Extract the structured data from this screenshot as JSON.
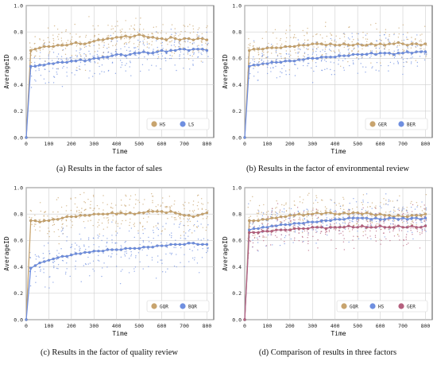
{
  "chart_data": [
    {
      "type": "scatter",
      "caption": "(a) Results in the factor of sales",
      "xlabel": "Time",
      "ylabel": "AverageID",
      "xlim": [
        0,
        830
      ],
      "ylim": [
        0,
        1.0
      ],
      "xticks": [
        0,
        100,
        200,
        300,
        400,
        500,
        600,
        700,
        800
      ],
      "yticks": [
        0.0,
        0.2,
        0.4,
        0.6,
        0.8,
        1.0
      ],
      "grid": true,
      "legend_position": "bottom-right",
      "series": [
        {
          "name": "HS",
          "color": "#c8a46e",
          "x": [
            0,
            20,
            40,
            60,
            80,
            100,
            120,
            140,
            160,
            180,
            200,
            220,
            240,
            260,
            280,
            300,
            320,
            340,
            360,
            380,
            400,
            420,
            440,
            460,
            480,
            500,
            520,
            540,
            560,
            580,
            600,
            620,
            640,
            660,
            680,
            700,
            720,
            740,
            760,
            780,
            800
          ],
          "y": [
            0.0,
            0.66,
            0.67,
            0.68,
            0.69,
            0.69,
            0.69,
            0.7,
            0.7,
            0.7,
            0.71,
            0.72,
            0.71,
            0.71,
            0.72,
            0.73,
            0.74,
            0.74,
            0.75,
            0.75,
            0.76,
            0.76,
            0.77,
            0.76,
            0.77,
            0.78,
            0.77,
            0.76,
            0.76,
            0.75,
            0.75,
            0.74,
            0.76,
            0.75,
            0.74,
            0.75,
            0.75,
            0.74,
            0.75,
            0.75,
            0.74
          ]
        },
        {
          "name": "LS",
          "color": "#6f8fe0",
          "x": [
            0,
            20,
            40,
            60,
            80,
            100,
            120,
            140,
            160,
            180,
            200,
            220,
            240,
            260,
            280,
            300,
            320,
            340,
            360,
            380,
            400,
            420,
            440,
            460,
            480,
            500,
            520,
            540,
            560,
            580,
            600,
            620,
            640,
            660,
            680,
            700,
            720,
            740,
            760,
            780,
            800
          ],
          "y": [
            0.0,
            0.54,
            0.54,
            0.55,
            0.55,
            0.56,
            0.56,
            0.57,
            0.57,
            0.57,
            0.58,
            0.58,
            0.59,
            0.58,
            0.59,
            0.6,
            0.6,
            0.61,
            0.61,
            0.62,
            0.63,
            0.63,
            0.62,
            0.63,
            0.64,
            0.64,
            0.65,
            0.64,
            0.64,
            0.65,
            0.66,
            0.65,
            0.66,
            0.66,
            0.67,
            0.67,
            0.66,
            0.67,
            0.67,
            0.67,
            0.66
          ]
        }
      ]
    },
    {
      "type": "scatter",
      "caption": "(b) Results in the factor of environmental review",
      "xlabel": "Time",
      "ylabel": "AverageID",
      "xlim": [
        0,
        830
      ],
      "ylim": [
        0,
        1.0
      ],
      "xticks": [
        0,
        100,
        200,
        300,
        400,
        500,
        600,
        700,
        800
      ],
      "yticks": [
        0.0,
        0.2,
        0.4,
        0.6,
        0.8,
        1.0
      ],
      "grid": true,
      "legend_position": "bottom-right",
      "series": [
        {
          "name": "GER",
          "color": "#c8a46e",
          "x": [
            0,
            20,
            40,
            60,
            80,
            100,
            120,
            140,
            160,
            180,
            200,
            220,
            240,
            260,
            280,
            300,
            320,
            340,
            360,
            380,
            400,
            420,
            440,
            460,
            480,
            500,
            520,
            540,
            560,
            580,
            600,
            620,
            640,
            660,
            680,
            700,
            720,
            740,
            760,
            780,
            800
          ],
          "y": [
            0.0,
            0.66,
            0.67,
            0.67,
            0.67,
            0.68,
            0.68,
            0.68,
            0.68,
            0.69,
            0.69,
            0.69,
            0.7,
            0.7,
            0.7,
            0.71,
            0.71,
            0.71,
            0.7,
            0.71,
            0.7,
            0.7,
            0.71,
            0.7,
            0.7,
            0.71,
            0.7,
            0.7,
            0.71,
            0.7,
            0.71,
            0.7,
            0.71,
            0.71,
            0.72,
            0.71,
            0.7,
            0.71,
            0.71,
            0.7,
            0.71
          ]
        },
        {
          "name": "BER",
          "color": "#6f8fe0",
          "x": [
            0,
            20,
            40,
            60,
            80,
            100,
            120,
            140,
            160,
            180,
            200,
            220,
            240,
            260,
            280,
            300,
            320,
            340,
            360,
            380,
            400,
            420,
            440,
            460,
            480,
            500,
            520,
            540,
            560,
            580,
            600,
            620,
            640,
            660,
            680,
            700,
            720,
            740,
            760,
            780,
            800
          ],
          "y": [
            0.0,
            0.54,
            0.55,
            0.55,
            0.56,
            0.56,
            0.57,
            0.57,
            0.57,
            0.58,
            0.58,
            0.58,
            0.59,
            0.59,
            0.6,
            0.6,
            0.6,
            0.61,
            0.61,
            0.61,
            0.61,
            0.62,
            0.62,
            0.62,
            0.63,
            0.63,
            0.63,
            0.63,
            0.64,
            0.63,
            0.64,
            0.64,
            0.64,
            0.63,
            0.64,
            0.64,
            0.65,
            0.64,
            0.65,
            0.65,
            0.65
          ]
        }
      ]
    },
    {
      "type": "scatter",
      "caption": "(c) Results in the factor of quality review",
      "xlabel": "Time",
      "ylabel": "AverageID",
      "xlim": [
        0,
        830
      ],
      "ylim": [
        0,
        1.0
      ],
      "xticks": [
        0,
        100,
        200,
        300,
        400,
        500,
        600,
        700,
        800
      ],
      "yticks": [
        0.0,
        0.2,
        0.4,
        0.6,
        0.8,
        1.0
      ],
      "grid": true,
      "legend_position": "bottom-right",
      "series": [
        {
          "name": "GQR",
          "color": "#c8a46e",
          "x": [
            0,
            20,
            40,
            60,
            80,
            100,
            120,
            140,
            160,
            180,
            200,
            220,
            240,
            260,
            280,
            300,
            320,
            340,
            360,
            380,
            400,
            420,
            440,
            460,
            480,
            500,
            520,
            540,
            560,
            580,
            600,
            620,
            640,
            660,
            680,
            700,
            720,
            740,
            760,
            780,
            800
          ],
          "y": [
            0.0,
            0.75,
            0.75,
            0.74,
            0.75,
            0.75,
            0.76,
            0.76,
            0.77,
            0.78,
            0.78,
            0.78,
            0.79,
            0.79,
            0.79,
            0.8,
            0.8,
            0.8,
            0.8,
            0.81,
            0.8,
            0.81,
            0.8,
            0.81,
            0.8,
            0.81,
            0.81,
            0.82,
            0.82,
            0.82,
            0.82,
            0.81,
            0.82,
            0.81,
            0.8,
            0.79,
            0.79,
            0.78,
            0.79,
            0.8,
            0.81
          ]
        },
        {
          "name": "BQR",
          "color": "#6f8fe0",
          "x": [
            0,
            20,
            40,
            60,
            80,
            100,
            120,
            140,
            160,
            180,
            200,
            220,
            240,
            260,
            280,
            300,
            320,
            340,
            360,
            380,
            400,
            420,
            440,
            460,
            480,
            500,
            520,
            540,
            560,
            580,
            600,
            620,
            640,
            660,
            680,
            700,
            720,
            740,
            760,
            780,
            800
          ],
          "y": [
            0.0,
            0.39,
            0.41,
            0.43,
            0.44,
            0.45,
            0.46,
            0.47,
            0.48,
            0.48,
            0.49,
            0.5,
            0.5,
            0.51,
            0.51,
            0.52,
            0.52,
            0.52,
            0.53,
            0.53,
            0.53,
            0.53,
            0.54,
            0.54,
            0.54,
            0.54,
            0.55,
            0.55,
            0.55,
            0.56,
            0.56,
            0.56,
            0.57,
            0.57,
            0.57,
            0.57,
            0.58,
            0.58,
            0.57,
            0.57,
            0.57
          ]
        }
      ]
    },
    {
      "type": "scatter",
      "caption": "(d) Comparison of results in three factors",
      "xlabel": "Time",
      "ylabel": "AverageID",
      "xlim": [
        0,
        830
      ],
      "ylim": [
        0,
        1.0
      ],
      "xticks": [
        0,
        100,
        200,
        300,
        400,
        500,
        600,
        700,
        800
      ],
      "yticks": [
        0.0,
        0.2,
        0.4,
        0.6,
        0.8,
        1.0
      ],
      "grid": true,
      "legend_position": "bottom-right",
      "series": [
        {
          "name": "GQR",
          "color": "#c8a46e",
          "x": [
            0,
            20,
            40,
            60,
            80,
            100,
            120,
            140,
            160,
            180,
            200,
            220,
            240,
            260,
            280,
            300,
            320,
            340,
            360,
            380,
            400,
            420,
            440,
            460,
            480,
            500,
            520,
            540,
            560,
            580,
            600,
            620,
            640,
            660,
            680,
            700,
            720,
            740,
            760,
            780,
            800
          ],
          "y": [
            0.0,
            0.75,
            0.75,
            0.75,
            0.76,
            0.76,
            0.77,
            0.77,
            0.78,
            0.78,
            0.79,
            0.79,
            0.8,
            0.79,
            0.8,
            0.8,
            0.81,
            0.8,
            0.81,
            0.81,
            0.8,
            0.8,
            0.81,
            0.8,
            0.81,
            0.81,
            0.8,
            0.81,
            0.8,
            0.79,
            0.8,
            0.79,
            0.79,
            0.78,
            0.79,
            0.78,
            0.78,
            0.79,
            0.79,
            0.79,
            0.8
          ]
        },
        {
          "name": "HS",
          "color": "#6f8fe0",
          "x": [
            0,
            20,
            40,
            60,
            80,
            100,
            120,
            140,
            160,
            180,
            200,
            220,
            240,
            260,
            280,
            300,
            320,
            340,
            360,
            380,
            400,
            420,
            440,
            460,
            480,
            500,
            520,
            540,
            560,
            580,
            600,
            620,
            640,
            660,
            680,
            700,
            720,
            740,
            760,
            780,
            800
          ],
          "y": [
            0.0,
            0.68,
            0.69,
            0.69,
            0.7,
            0.7,
            0.71,
            0.71,
            0.72,
            0.72,
            0.72,
            0.73,
            0.73,
            0.73,
            0.74,
            0.74,
            0.74,
            0.75,
            0.75,
            0.75,
            0.76,
            0.76,
            0.76,
            0.77,
            0.77,
            0.77,
            0.77,
            0.77,
            0.76,
            0.77,
            0.76,
            0.76,
            0.77,
            0.77,
            0.76,
            0.77,
            0.76,
            0.77,
            0.77,
            0.76,
            0.77
          ]
        },
        {
          "name": "GER",
          "color": "#b5607e",
          "x": [
            0,
            20,
            40,
            60,
            80,
            100,
            120,
            140,
            160,
            180,
            200,
            220,
            240,
            260,
            280,
            300,
            320,
            340,
            360,
            380,
            400,
            420,
            440,
            460,
            480,
            500,
            520,
            540,
            560,
            580,
            600,
            620,
            640,
            660,
            680,
            700,
            720,
            740,
            760,
            780,
            800
          ],
          "y": [
            0.0,
            0.66,
            0.66,
            0.66,
            0.67,
            0.67,
            0.67,
            0.68,
            0.68,
            0.68,
            0.68,
            0.69,
            0.69,
            0.69,
            0.69,
            0.7,
            0.7,
            0.7,
            0.69,
            0.7,
            0.7,
            0.7,
            0.7,
            0.71,
            0.7,
            0.7,
            0.71,
            0.7,
            0.7,
            0.7,
            0.71,
            0.7,
            0.7,
            0.7,
            0.71,
            0.7,
            0.7,
            0.71,
            0.7,
            0.7,
            0.71
          ]
        }
      ]
    }
  ]
}
